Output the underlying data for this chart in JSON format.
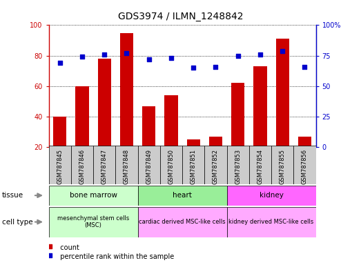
{
  "title": "GDS3974 / ILMN_1248842",
  "samples": [
    "GSM787845",
    "GSM787846",
    "GSM787847",
    "GSM787848",
    "GSM787849",
    "GSM787850",
    "GSM787851",
    "GSM787852",
    "GSM787853",
    "GSM787854",
    "GSM787855",
    "GSM787856"
  ],
  "count_values": [
    40,
    60,
    78,
    95,
    47,
    54,
    25,
    27,
    62,
    73,
    91,
    27
  ],
  "percentile_values": [
    69,
    74,
    76,
    77,
    72,
    73,
    65,
    66,
    75,
    76,
    79,
    66
  ],
  "count_color": "#cc0000",
  "percentile_color": "#0000cc",
  "ylim_left": [
    20,
    100
  ],
  "ylim_right": [
    0,
    100
  ],
  "yticks_left": [
    20,
    40,
    60,
    80,
    100
  ],
  "yticks_right": [
    0,
    25,
    50,
    75,
    100
  ],
  "ytick_labels_right": [
    "0",
    "25",
    "50",
    "75",
    "100%"
  ],
  "tissue_info": [
    {
      "label": "bone marrow",
      "start": 0,
      "end": 4,
      "color": "#ccffcc"
    },
    {
      "label": "heart",
      "start": 4,
      "end": 8,
      "color": "#99ee99"
    },
    {
      "label": "kidney",
      "start": 8,
      "end": 12,
      "color": "#ff66ff"
    }
  ],
  "celltype_info": [
    {
      "label": "mesenchymal stem cells\n(MSC)",
      "start": 0,
      "end": 4,
      "color": "#ffccff"
    },
    {
      "label": "cardiac derived MSC-like cells",
      "start": 4,
      "end": 8,
      "color": "#ffccff"
    },
    {
      "label": "kidney derived MSC-like cells",
      "start": 8,
      "end": 12,
      "color": "#ffccff"
    }
  ],
  "legend_count_label": "count",
  "legend_pct_label": "percentile rank within the sample",
  "xtick_bg_color": "#cccccc",
  "border_color": "#000000"
}
